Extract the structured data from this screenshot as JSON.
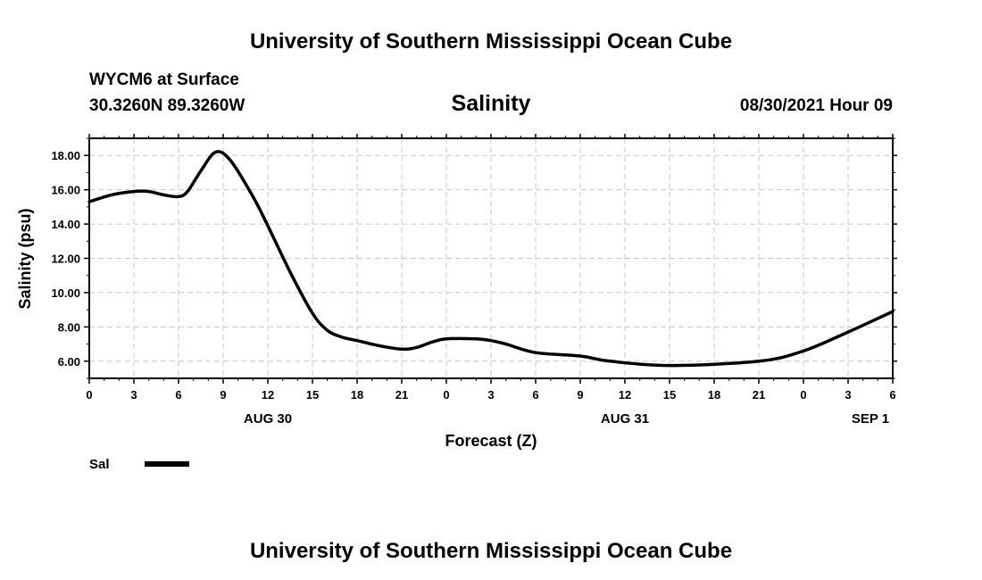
{
  "page": {
    "title_top": "University of Southern Mississippi Ocean Cube",
    "title_bottom": "University of Southern Mississippi Ocean Cube",
    "station": "WYCM6 at Surface",
    "coords": "30.3260N  89.3260W",
    "timestamp": "08/30/2021 Hour 09"
  },
  "chart_data": {
    "type": "line",
    "title": "Salinity",
    "xlabel": "Forecast (Z)",
    "ylabel": "Salinity (psu)",
    "x_unit": "hours since AUG 30 00Z",
    "xlim": [
      0,
      54
    ],
    "ylim": [
      5.0,
      19.0
    ],
    "grid": true,
    "xticks": [
      0,
      3,
      6,
      9,
      12,
      15,
      18,
      21,
      24,
      27,
      30,
      33,
      36,
      39,
      42,
      45,
      48,
      51,
      54
    ],
    "xtick_labels": [
      "0",
      "3",
      "6",
      "9",
      "12",
      "15",
      "18",
      "21",
      "0",
      "3",
      "6",
      "9",
      "12",
      "15",
      "18",
      "21",
      "0",
      "3",
      "6"
    ],
    "yticks": [
      6,
      8,
      10,
      12,
      14,
      16,
      18
    ],
    "ytick_labels": [
      "6.00",
      "8.00",
      "10.00",
      "12.00",
      "14.00",
      "16.00",
      "18.00"
    ],
    "date_labels": [
      {
        "x": 12,
        "label": "AUG 30"
      },
      {
        "x": 36,
        "label": "AUG 31"
      },
      {
        "x": 52.5,
        "label": "SEP 1"
      }
    ],
    "series": [
      {
        "name": "Sal",
        "color": "#000000",
        "x": [
          0,
          1.5,
          3,
          4,
          5,
          6,
          6.6,
          7.5,
          8.5,
          9.5,
          11,
          12,
          13.5,
          15,
          16,
          17,
          18,
          19.5,
          21,
          22,
          23,
          24,
          26,
          27,
          28,
          30,
          33,
          35,
          39,
          45,
          48,
          51,
          54
        ],
        "values": [
          15.3,
          15.7,
          15.9,
          15.9,
          15.7,
          15.6,
          15.9,
          17.1,
          18.2,
          17.7,
          15.6,
          13.9,
          11.2,
          8.8,
          7.8,
          7.4,
          7.2,
          6.9,
          6.7,
          6.8,
          7.1,
          7.3,
          7.3,
          7.2,
          7.0,
          6.5,
          6.3,
          6.0,
          5.75,
          6.0,
          6.6,
          7.7,
          8.9
        ]
      }
    ]
  }
}
